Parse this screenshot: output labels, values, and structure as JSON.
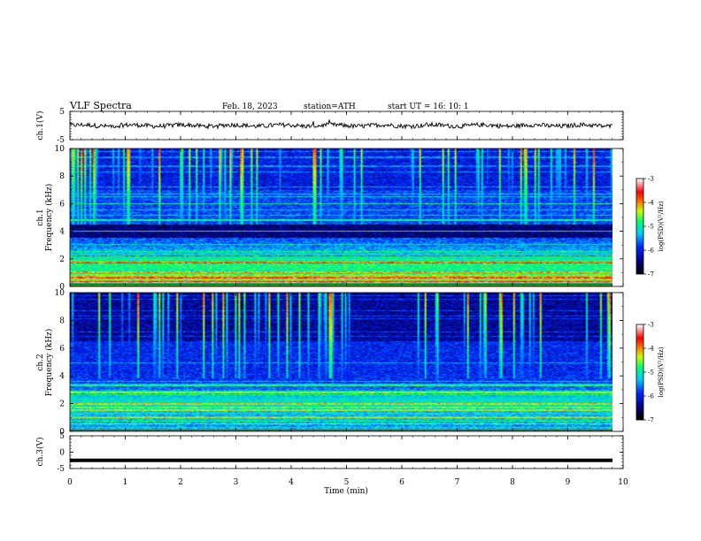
{
  "header": {
    "title": "VLF Spectra",
    "date": "Feb. 18, 2023",
    "station": "station=ATH",
    "start": "start  UT  =   16: 10: 1"
  },
  "chart_data": [
    {
      "type": "line",
      "panel": "ch1-waveform",
      "ylabel": "ch.1(V)",
      "ylim": [
        -5,
        5
      ],
      "yticks": [
        "5",
        "-5"
      ],
      "xlim": [
        0,
        10
      ],
      "x_end_min": 9.8,
      "baseline_v": 0,
      "noise_v": 0.8
    },
    {
      "type": "heatmap",
      "panel": "ch1-spectrogram",
      "ylabel": "ch.1\nFrequency  (kHz)",
      "ylim": [
        0,
        10
      ],
      "yticks": [
        "0",
        "2",
        "4",
        "6",
        "8",
        "10"
      ],
      "xlim": [
        0,
        10
      ],
      "x_end_min": 9.8,
      "colorbar": {
        "label": "log(PSD)(V²/Hz)",
        "range": [
          -7,
          -3
        ],
        "ticks": [
          "-3",
          "-4",
          "-5",
          "-6",
          "-7"
        ],
        "colors": [
          "#000000",
          "#0000aa",
          "#0033ff",
          "#00ccff",
          "#00ff66",
          "#ccff00",
          "#ff6600",
          "#ff0000",
          "#ffffff"
        ]
      },
      "dominant_bands_khz": [
        0.3,
        0.6,
        1.0,
        1.7,
        2.2,
        4.0,
        4.8,
        6.0
      ],
      "dark_band_khz": [
        3.5,
        4.5
      ],
      "transient_streaks": "frequent vertical sferics from 5 to 10 kHz"
    },
    {
      "type": "heatmap",
      "panel": "ch2-spectrogram",
      "ylabel": "ch.2\nFrequency  (kHz)",
      "ylim": [
        0,
        10
      ],
      "yticks": [
        "0",
        "2",
        "4",
        "6",
        "8",
        "10"
      ],
      "xlim": [
        0,
        10
      ],
      "x_end_min": 9.8,
      "colorbar": {
        "label": "log(PSD)(V²/Hz)",
        "range": [
          -7,
          -3
        ],
        "ticks": [
          "-3",
          "-4",
          "-5",
          "-6",
          "-7"
        ]
      },
      "dominant_bands_khz": [
        0.5,
        1.0,
        1.5,
        2.0,
        2.8,
        3.3
      ],
      "transient_streaks": "vertical sferics from 4 to 10 kHz"
    },
    {
      "type": "line",
      "panel": "ch3-waveform",
      "ylabel": "ch.3(V)",
      "ylim": [
        -5,
        5
      ],
      "yticks": [
        "5",
        "0",
        "-5"
      ],
      "xlim": [
        0,
        10
      ],
      "x_end_min": 9.8,
      "baseline_v": -2.5,
      "noise_v": 0.0
    }
  ],
  "xaxis": {
    "label": "Time  (min)",
    "ticks": [
      "0",
      "1",
      "2",
      "3",
      "4",
      "5",
      "6",
      "7",
      "8",
      "9",
      "10"
    ]
  }
}
